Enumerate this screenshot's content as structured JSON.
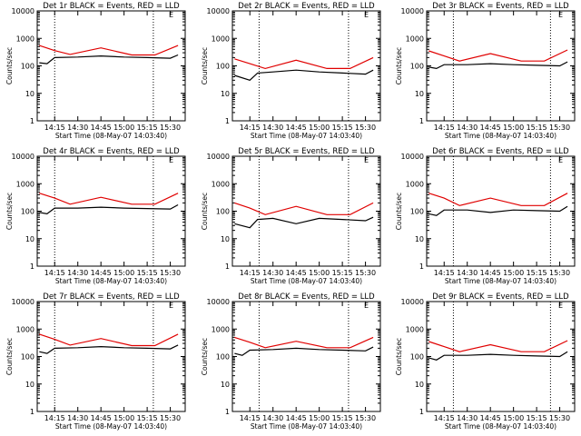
{
  "chart_data": [
    {
      "type": "line",
      "title": "Det 1r BLACK = Events, RED = LLD",
      "xlabel": "Start Time (08-May-07 14:03:40)",
      "ylabel": "Counts/sec",
      "ylim": [
        1,
        10000
      ],
      "y_scale": "log",
      "y_ticks": [
        "1",
        "10",
        "100",
        "1000",
        "10000"
      ],
      "x_ticks": [
        "14:15",
        "14:30",
        "14:45",
        "15:00",
        "15:15",
        "15:30"
      ],
      "vertical_markers": [
        "14:15",
        "15:19"
      ],
      "corner_mark": "E",
      "series": [
        {
          "color": "#000000",
          "x": [
            "14:05",
            "14:10",
            "14:15",
            "14:30",
            "14:45",
            "15:00",
            "15:15",
            "15:30",
            "15:35"
          ],
          "y": [
            130,
            120,
            200,
            210,
            230,
            210,
            200,
            190,
            250
          ]
        },
        {
          "color": "#e00000",
          "x": [
            "14:05",
            "14:15",
            "14:25",
            "14:45",
            "15:05",
            "15:20",
            "15:35"
          ],
          "y": [
            550,
            360,
            260,
            450,
            250,
            250,
            550
          ]
        }
      ]
    },
    {
      "type": "line",
      "title": "Det 2r BLACK = Events, RED = LLD",
      "xlabel": "Start Time (08-May-07 14:03:40)",
      "ylabel": "Counts/sec",
      "ylim": [
        1,
        10000
      ],
      "y_scale": "log",
      "y_ticks": [
        "1",
        "10",
        "100",
        "1000",
        "10000"
      ],
      "x_ticks": [
        "14:15",
        "14:30",
        "14:45",
        "15:00",
        "15:15",
        "15:30"
      ],
      "vertical_markers": [
        "14:21",
        "15:19"
      ],
      "corner_mark": "E",
      "series": [
        {
          "color": "#000000",
          "x": [
            "14:05",
            "14:15",
            "14:20",
            "14:30",
            "14:45",
            "15:00",
            "15:15",
            "15:30",
            "15:35"
          ],
          "y": [
            45,
            30,
            55,
            60,
            70,
            60,
            55,
            50,
            70
          ]
        },
        {
          "color": "#e00000",
          "x": [
            "14:05",
            "14:15",
            "14:25",
            "14:45",
            "15:05",
            "15:20",
            "15:35"
          ],
          "y": [
            180,
            120,
            80,
            160,
            80,
            80,
            200
          ]
        }
      ]
    },
    {
      "type": "line",
      "title": "Det 3r BLACK = Events, RED = LLD",
      "xlabel": "Start Time (08-May-07 14:03:40)",
      "ylabel": "Counts/sec",
      "ylim": [
        1,
        10000
      ],
      "y_scale": "log",
      "y_ticks": [
        "1",
        "10",
        "100",
        "1000",
        "10000"
      ],
      "x_ticks": [
        "14:15",
        "14:30",
        "14:45",
        "15:00",
        "15:15",
        "15:30"
      ],
      "vertical_markers": [
        "14:21",
        "15:24"
      ],
      "corner_mark": "E",
      "series": [
        {
          "color": "#000000",
          "x": [
            "14:05",
            "14:10",
            "14:15",
            "14:30",
            "14:45",
            "15:00",
            "15:15",
            "15:30",
            "15:35"
          ],
          "y": [
            90,
            80,
            110,
            110,
            120,
            110,
            105,
            100,
            140
          ]
        },
        {
          "color": "#e00000",
          "x": [
            "14:05",
            "14:15",
            "14:25",
            "14:45",
            "15:05",
            "15:20",
            "15:35"
          ],
          "y": [
            350,
            230,
            150,
            280,
            150,
            150,
            380
          ]
        }
      ]
    },
    {
      "type": "line",
      "title": "Det 4r BLACK = Events, RED = LLD",
      "xlabel": "Start Time (08-May-07 14:03:40)",
      "ylabel": "Counts/sec",
      "ylim": [
        1,
        10000
      ],
      "y_scale": "log",
      "y_ticks": [
        "1",
        "10",
        "100",
        "1000",
        "10000"
      ],
      "x_ticks": [
        "14:15",
        "14:30",
        "14:45",
        "15:00",
        "15:15",
        "15:30"
      ],
      "vertical_markers": [
        "14:15",
        "15:19"
      ],
      "corner_mark": "E",
      "series": [
        {
          "color": "#000000",
          "x": [
            "14:05",
            "14:10",
            "14:15",
            "14:30",
            "14:45",
            "15:00",
            "15:15",
            "15:30",
            "15:35"
          ],
          "y": [
            90,
            80,
            130,
            130,
            140,
            130,
            125,
            120,
            170
          ]
        },
        {
          "color": "#e00000",
          "x": [
            "14:05",
            "14:15",
            "14:25",
            "14:45",
            "15:05",
            "15:20",
            "15:35"
          ],
          "y": [
            450,
            300,
            180,
            320,
            180,
            180,
            450
          ]
        }
      ]
    },
    {
      "type": "line",
      "title": "Det 5r BLACK = Events, RED = LLD",
      "xlabel": "Start Time (08-May-07 14:03:40)",
      "ylabel": "Counts/sec",
      "ylim": [
        1,
        10000
      ],
      "y_scale": "log",
      "y_ticks": [
        "1",
        "10",
        "100",
        "1000",
        "10000"
      ],
      "x_ticks": [
        "14:15",
        "14:30",
        "14:45",
        "15:00",
        "15:15",
        "15:30"
      ],
      "vertical_markers": [
        "14:21",
        "15:19"
      ],
      "corner_mark": "E",
      "series": [
        {
          "color": "#000000",
          "x": [
            "14:05",
            "14:15",
            "14:20",
            "14:30",
            "14:45",
            "15:00",
            "15:15",
            "15:30",
            "15:35"
          ],
          "y": [
            35,
            25,
            50,
            55,
            35,
            55,
            50,
            45,
            60
          ]
        },
        {
          "color": "#e00000",
          "x": [
            "14:05",
            "14:15",
            "14:25",
            "14:45",
            "15:05",
            "15:20",
            "15:35"
          ],
          "y": [
            200,
            130,
            75,
            150,
            75,
            75,
            200
          ]
        }
      ]
    },
    {
      "type": "line",
      "title": "Det 6r BLACK = Events, RED = LLD",
      "xlabel": "Start Time (08-May-07 14:03:40)",
      "ylabel": "Counts/sec",
      "ylim": [
        1,
        10000
      ],
      "y_scale": "log",
      "y_ticks": [
        "1",
        "10",
        "100",
        "1000",
        "10000"
      ],
      "x_ticks": [
        "14:15",
        "14:30",
        "14:45",
        "15:00",
        "15:15",
        "15:30"
      ],
      "vertical_markers": [
        "14:21",
        "15:24"
      ],
      "corner_mark": "E",
      "series": [
        {
          "color": "#000000",
          "x": [
            "14:05",
            "14:10",
            "14:15",
            "14:30",
            "14:45",
            "15:00",
            "15:15",
            "15:30",
            "15:35"
          ],
          "y": [
            80,
            70,
            110,
            110,
            90,
            110,
            105,
            100,
            150
          ]
        },
        {
          "color": "#e00000",
          "x": [
            "14:05",
            "14:15",
            "14:25",
            "14:45",
            "15:05",
            "15:20",
            "15:35"
          ],
          "y": [
            450,
            300,
            160,
            300,
            160,
            160,
            450
          ]
        }
      ]
    },
    {
      "type": "line",
      "title": "Det 7r BLACK = Events, RED = LLD",
      "xlabel": "Start Time (08-May-07 14:03:40)",
      "ylabel": "Counts/sec",
      "ylim": [
        1,
        10000
      ],
      "y_scale": "log",
      "y_ticks": [
        "1",
        "10",
        "100",
        "1000",
        "10000"
      ],
      "x_ticks": [
        "14:15",
        "14:30",
        "14:45",
        "15:00",
        "15:15",
        "15:30"
      ],
      "vertical_markers": [
        "14:15",
        "15:19"
      ],
      "corner_mark": "E",
      "series": [
        {
          "color": "#000000",
          "x": [
            "14:05",
            "14:10",
            "14:15",
            "14:30",
            "14:45",
            "15:00",
            "15:15",
            "15:30",
            "15:35"
          ],
          "y": [
            150,
            130,
            200,
            210,
            230,
            210,
            200,
            190,
            260
          ]
        },
        {
          "color": "#e00000",
          "x": [
            "14:05",
            "14:15",
            "14:25",
            "14:45",
            "15:05",
            "15:20",
            "15:35"
          ],
          "y": [
            650,
            420,
            260,
            450,
            250,
            250,
            650
          ]
        }
      ]
    },
    {
      "type": "line",
      "title": "Det 8r BLACK = Events, RED = LLD",
      "xlabel": "Start Time (08-May-07 14:03:40)",
      "ylabel": "Counts/sec",
      "ylim": [
        1,
        10000
      ],
      "y_scale": "log",
      "y_ticks": [
        "1",
        "10",
        "100",
        "1000",
        "10000"
      ],
      "x_ticks": [
        "14:15",
        "14:30",
        "14:45",
        "15:00",
        "15:15",
        "15:30"
      ],
      "vertical_markers": [
        "14:21",
        "15:19"
      ],
      "corner_mark": "E",
      "series": [
        {
          "color": "#000000",
          "x": [
            "14:05",
            "14:10",
            "14:15",
            "14:30",
            "14:45",
            "15:00",
            "15:15",
            "15:30",
            "15:35"
          ],
          "y": [
            130,
            110,
            170,
            180,
            200,
            180,
            170,
            160,
            220
          ]
        },
        {
          "color": "#e00000",
          "x": [
            "14:05",
            "14:15",
            "14:25",
            "14:45",
            "15:05",
            "15:20",
            "15:35"
          ],
          "y": [
            500,
            330,
            210,
            360,
            210,
            210,
            500
          ]
        }
      ]
    },
    {
      "type": "line",
      "title": "Det 9r BLACK = Events, RED = LLD",
      "xlabel": "Start Time (08-May-07 14:03:40)",
      "ylabel": "Counts/sec",
      "ylim": [
        1,
        10000
      ],
      "y_scale": "log",
      "y_ticks": [
        "1",
        "10",
        "100",
        "1000",
        "10000"
      ],
      "x_ticks": [
        "14:15",
        "14:30",
        "14:45",
        "15:00",
        "15:15",
        "15:30"
      ],
      "vertical_markers": [
        "14:21",
        "15:24"
      ],
      "corner_mark": "E",
      "series": [
        {
          "color": "#000000",
          "x": [
            "14:05",
            "14:10",
            "14:15",
            "14:30",
            "14:45",
            "15:00",
            "15:15",
            "15:30",
            "15:35"
          ],
          "y": [
            90,
            75,
            110,
            110,
            120,
            110,
            105,
            100,
            150
          ]
        },
        {
          "color": "#e00000",
          "x": [
            "14:05",
            "14:15",
            "14:25",
            "14:45",
            "15:05",
            "15:20",
            "15:35"
          ],
          "y": [
            350,
            230,
            150,
            270,
            150,
            150,
            380
          ]
        }
      ]
    }
  ]
}
